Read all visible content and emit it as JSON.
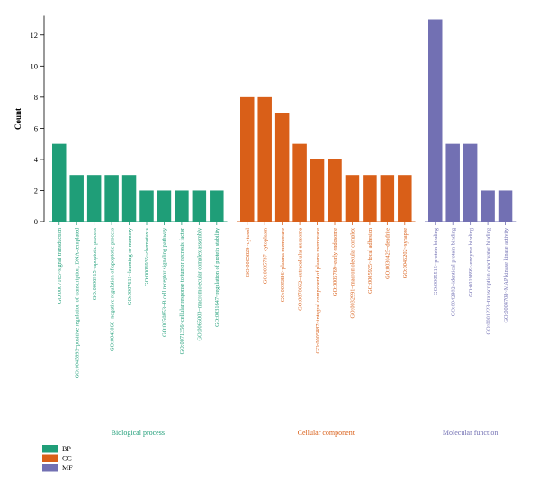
{
  "chart_data": {
    "type": "bar",
    "ylabel": "Count",
    "ylim": [
      0,
      13
    ],
    "yticks": [
      0,
      2,
      4,
      6,
      8,
      10,
      12
    ],
    "grid": false,
    "legend_position": "bottom-left",
    "colors": {
      "BP": "#1f9e78",
      "CC": "#d95f18",
      "MF": "#7270b3"
    },
    "groups": [
      {
        "key": "BP",
        "name": "Biological process",
        "categories": [
          "GO:0007165~signal transduction",
          "GO:0045893~positive regulation of transcription, DNA-templated",
          "GO:0006915~apoptotic process",
          "GO:0043066~negative regulation of apoptotic process",
          "GO:0007611~learning or memory",
          "GO:0006935~chemotaxis",
          "GO:0050853~B cell receptor signaling pathway",
          "GO:0071356~cellular response to tumor necrosis factor",
          "GO:0065003~macromolecular complex assembly",
          "GO:0031647~regulation of protein stability"
        ],
        "values": [
          5,
          3,
          3,
          3,
          3,
          2,
          2,
          2,
          2,
          2
        ]
      },
      {
        "key": "CC",
        "name": "Cellular component",
        "categories": [
          "GO:0005829~cytosol",
          "GO:0005737~cytoplasm",
          "GO:0005886~plasma membrane",
          "GO:0070062~extracellular exosome",
          "GO:0005887~integral component of plasma membrane",
          "GO:0005769~early endosome",
          "GO:0032991~macromolecular complex",
          "GO:0005925~focal adhesion",
          "GO:0030425~dendrite",
          "GO:0045202~synapse"
        ],
        "values": [
          8,
          8,
          7,
          5,
          4,
          4,
          3,
          3,
          3,
          3
        ]
      },
      {
        "key": "MF",
        "name": "Molecular function",
        "categories": [
          "GO:0005515~protein binding",
          "GO:0042802~identical protein binding",
          "GO:0019899~enzyme binding",
          "GO:0001223~transcription coactivator binding",
          "GO:0004708~MAP kinase kinase activity"
        ],
        "values": [
          13,
          5,
          5,
          2,
          2
        ]
      }
    ],
    "legend": [
      {
        "key": "BP",
        "label": "BP"
      },
      {
        "key": "CC",
        "label": "CC"
      },
      {
        "key": "MF",
        "label": "MF"
      }
    ]
  }
}
